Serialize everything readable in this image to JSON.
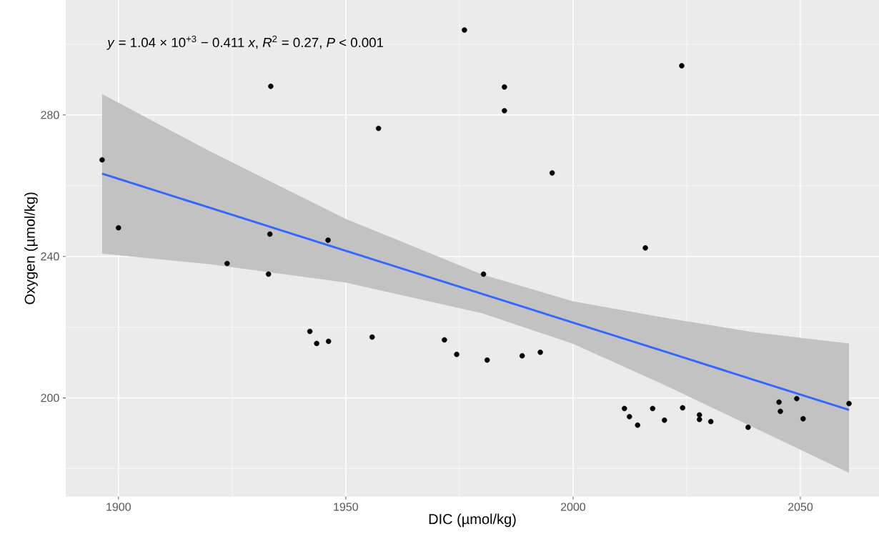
{
  "chart_data": {
    "type": "scatter",
    "xlabel": "DIC (µmol/kg)",
    "ylabel": "Oxygen (µmol/kg)",
    "annotations": [
      "*y* = 1.04 × 10$^{+3}$ − 0.411 *x*, *R*$^{2}$ = 0.27, *P* < 0.001"
    ],
    "xlim": [
      1888.4,
      2067.3
    ],
    "ylim": [
      172.1,
      312.5
    ],
    "xticks": [
      1900,
      1950,
      2000,
      2050
    ],
    "yticks": [
      200,
      240,
      280
    ],
    "grid": true,
    "series": [
      {
        "color": "#000000",
        "marker": "circle",
        "x": [
          1896.4,
          1900,
          1923.9,
          1933.0,
          1933.3,
          1933.5,
          1942.1,
          1943.6,
          1946.1,
          1946.2,
          1955.8,
          1957.2,
          1971.7,
          1974.4,
          1976.1,
          1980.3,
          1981.1,
          1984.9,
          1984.9,
          1988.8,
          1992.8,
          1995.4,
          2011.3,
          2012.4,
          2014.2,
          2015.9,
          2017.5,
          2020.1,
          2023.9,
          2024.1,
          2027.8,
          2027.8,
          2030.3,
          2038.5,
          2045.3,
          2045.6,
          2049.2,
          2050.6,
          2060.7
        ],
        "values": [
          267.3,
          248.1,
          238.0,
          235.0,
          246.3,
          288.1,
          218.8,
          215.4,
          244.6,
          216.0,
          217.2,
          276.2,
          216.4,
          212.3,
          304.0,
          235.0,
          210.7,
          287.9,
          281.2,
          211.9,
          212.9,
          263.6,
          197.0,
          194.7,
          192.3,
          242.4,
          197.0,
          193.7,
          293.9,
          197.2,
          195.2,
          193.9,
          193.3,
          191.7,
          198.8,
          196.2,
          199.8,
          194.1,
          198.4
        ]
      },
      {
        "type": "line",
        "color": "#3366ff",
        "x": [
          1896.4,
          1920,
          1950,
          1980,
          2000,
          2020,
          2040,
          2060.7
        ],
        "values": [
          263.4,
          253.8,
          241.6,
          229.4,
          221.3,
          213.2,
          205.0,
          196.6
        ],
        "lower": [
          240.8,
          237.8,
          232.6,
          223.9,
          215.3,
          203.7,
          191.5,
          178.8
        ],
        "upper": [
          285.9,
          269.8,
          250.6,
          234.9,
          227.3,
          222.7,
          218.5,
          215.4
        ]
      }
    ]
  }
}
